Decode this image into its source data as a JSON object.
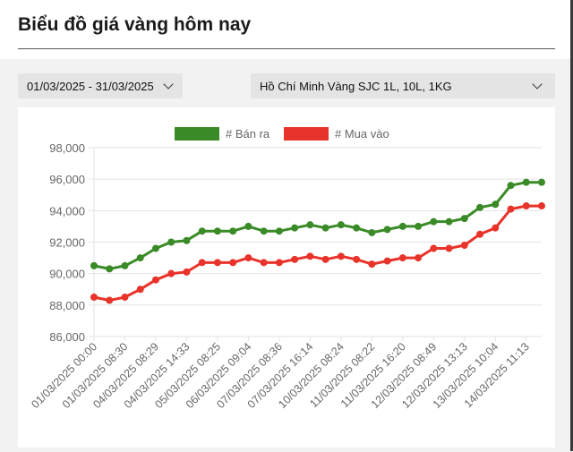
{
  "page": {
    "title": "Biểu đồ giá vàng hôm nay"
  },
  "filters": {
    "date_range": "01/03/2025 - 31/03/2025",
    "product": "Hồ Chí Minh Vàng SJC 1L, 10L, 1KG",
    "icon": "chevron-down-icon"
  },
  "chart_data": {
    "type": "line",
    "legend_position": "top",
    "grid": {
      "horizontal": true,
      "vertical": false
    },
    "ylim": [
      86000,
      98000
    ],
    "yticks": [
      "86,000",
      "88,000",
      "90,000",
      "92,000",
      "94,000",
      "96,000",
      "98,000"
    ],
    "x_tick_labels": [
      "01/03/2025 00:00",
      "01/03/2025 08:30",
      "04/03/2025 08:29",
      "04/03/2025 14:33",
      "05/03/2025 08:25",
      "06/03/2025 09:04",
      "07/03/2025 08:36",
      "07/03/2025 16:14",
      "10/03/2025 08:24",
      "11/03/2025 08:22",
      "11/03/2025 16:20",
      "12/03/2025 08:49",
      "12/03/2025 13:13",
      "13/03/2025 10:04",
      "14/03/2025 11:13"
    ],
    "point_count": 30,
    "series": [
      {
        "name": "# Bán ra",
        "color": "#3a8a27",
        "values": [
          90500,
          90300,
          90500,
          91000,
          91600,
          92000,
          92100,
          92700,
          92700,
          92700,
          93000,
          92700,
          92700,
          92900,
          93100,
          92900,
          93100,
          92900,
          92600,
          92800,
          93000,
          93000,
          93300,
          93300,
          93500,
          94200,
          94400,
          95600,
          95800,
          95800
        ]
      },
      {
        "name": "# Mua vào",
        "color": "#e8332a",
        "values": [
          88500,
          88300,
          88500,
          89000,
          89600,
          90000,
          90100,
          90700,
          90700,
          90700,
          91000,
          90700,
          90700,
          90900,
          91100,
          90900,
          91100,
          90900,
          90600,
          90800,
          91000,
          91000,
          91600,
          91600,
          91800,
          92500,
          92900,
          94100,
          94300,
          94300
        ]
      }
    ]
  }
}
